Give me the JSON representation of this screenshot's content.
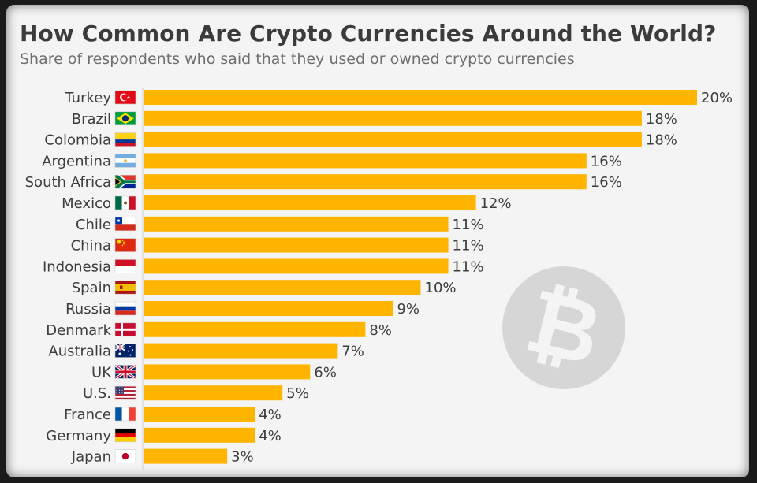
{
  "title": "How Common Are Crypto Currencies Around the World?",
  "subtitle": "Share of respondents who said that they used or owned crypto currencies",
  "chart_data": {
    "type": "bar",
    "orientation": "horizontal",
    "title": "How Common Are Crypto Currencies Around the World?",
    "subtitle": "Share of respondents who said that they used or owned crypto currencies",
    "categories": [
      "Turkey",
      "Brazil",
      "Colombia",
      "Argentina",
      "South Africa",
      "Mexico",
      "Chile",
      "China",
      "Indonesia",
      "Spain",
      "Russia",
      "Denmark",
      "Australia",
      "UK",
      "U.S.",
      "France",
      "Germany",
      "Japan"
    ],
    "values": [
      20,
      18,
      18,
      16,
      16,
      12,
      11,
      11,
      11,
      10,
      9,
      8,
      7,
      6,
      5,
      4,
      4,
      3
    ],
    "value_labels": [
      "20%",
      "18%",
      "18%",
      "16%",
      "16%",
      "12%",
      "11%",
      "11%",
      "11%",
      "10%",
      "9%",
      "8%",
      "7%",
      "6%",
      "5%",
      "4%",
      "4%",
      "3%"
    ],
    "unit": "%",
    "xlim": [
      0,
      20
    ],
    "bar_color": "#ffb400",
    "grid": false,
    "legend": "none",
    "flag_icons": [
      "flag-turkey-icon",
      "flag-brazil-icon",
      "flag-colombia-icon",
      "flag-argentina-icon",
      "flag-south-africa-icon",
      "flag-mexico-icon",
      "flag-chile-icon",
      "flag-china-icon",
      "flag-indonesia-icon",
      "flag-spain-icon",
      "flag-russia-icon",
      "flag-denmark-icon",
      "flag-australia-icon",
      "flag-uk-icon",
      "flag-us-icon",
      "flag-france-icon",
      "flag-germany-icon",
      "flag-japan-icon"
    ],
    "decoration": "bitcoin-logo-icon"
  }
}
